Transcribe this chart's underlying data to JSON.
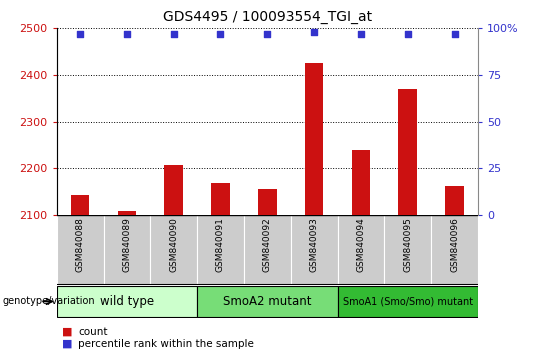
{
  "title": "GDS4495 / 100093554_TGI_at",
  "samples": [
    "GSM840088",
    "GSM840089",
    "GSM840090",
    "GSM840091",
    "GSM840092",
    "GSM840093",
    "GSM840094",
    "GSM840095",
    "GSM840096"
  ],
  "counts": [
    2143,
    2108,
    2207,
    2168,
    2155,
    2425,
    2240,
    2370,
    2163
  ],
  "percentiles": [
    97,
    97,
    97,
    97,
    97,
    98,
    97,
    97,
    97
  ],
  "ylim_left": [
    2100,
    2500
  ],
  "ylim_right": [
    0,
    100
  ],
  "yticks_left": [
    2100,
    2200,
    2300,
    2400,
    2500
  ],
  "yticks_right": [
    0,
    25,
    50,
    75,
    100
  ],
  "bar_color": "#cc1111",
  "dot_color": "#3333cc",
  "groups": [
    {
      "label": "wild type",
      "start": 0,
      "end": 3,
      "color": "#ccffcc"
    },
    {
      "label": "SmoA2 mutant",
      "start": 3,
      "end": 6,
      "color": "#77dd77"
    },
    {
      "label": "SmoA1 (Smo/Smo) mutant",
      "start": 6,
      "end": 9,
      "color": "#33bb33"
    }
  ],
  "left_axis_color": "#cc1111",
  "right_axis_color": "#3333cc",
  "genotype_label": "genotype/variation",
  "background_color": "#ffffff",
  "plot_bg_color": "#ffffff",
  "sample_bg_color": "#cccccc",
  "bar_width": 0.4
}
